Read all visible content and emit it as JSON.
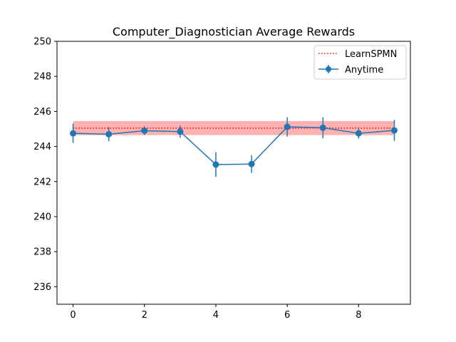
{
  "chart_data": {
    "type": "line",
    "title": "Computer_Diagnostician Average Rewards",
    "xlabel": "",
    "ylabel": "",
    "xlim": [
      -0.45,
      9.45
    ],
    "ylim": [
      235,
      250
    ],
    "xticks": [
      0,
      2,
      4,
      6,
      8
    ],
    "xtick_labels": [
      "0",
      "2",
      "4",
      "6",
      "8"
    ],
    "yticks": [
      236,
      238,
      240,
      242,
      244,
      246,
      248,
      250
    ],
    "ytick_labels": [
      "236",
      "238",
      "240",
      "242",
      "244",
      "246",
      "248",
      "250"
    ],
    "grid": false,
    "legend_position": "top-right",
    "series": [
      {
        "name": "LearnSPMN",
        "style": "dotted-line-with-band",
        "color": "#ff0000",
        "band_color": "#ff0000",
        "x": [
          0,
          9
        ],
        "y": [
          245.05,
          245.05
        ],
        "band_lower": 244.65,
        "band_upper": 245.45
      },
      {
        "name": "Anytime",
        "style": "line-markers-errorbars",
        "color": "#1f77b4",
        "x": [
          0,
          1,
          2,
          3,
          4,
          5,
          6,
          7,
          8,
          9
        ],
        "y": [
          244.75,
          244.7,
          244.9,
          244.85,
          242.97,
          243.0,
          245.12,
          245.07,
          244.75,
          244.92
        ],
        "yerr": [
          0.55,
          0.4,
          0.25,
          0.35,
          0.7,
          0.5,
          0.55,
          0.6,
          0.3,
          0.6
        ]
      }
    ]
  }
}
